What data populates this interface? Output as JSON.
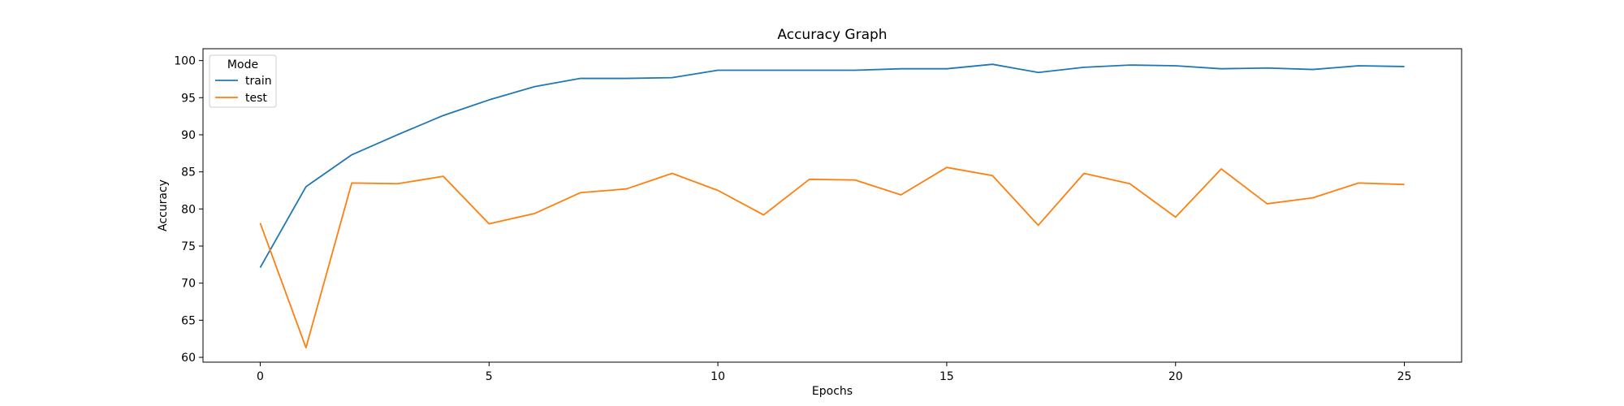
{
  "chart_data": {
    "type": "line",
    "title": "Accuracy Graph",
    "xlabel": "Epochs",
    "ylabel": "Accuracy",
    "x": [
      0,
      1,
      2,
      3,
      4,
      5,
      6,
      7,
      8,
      9,
      10,
      11,
      12,
      13,
      14,
      15,
      16,
      17,
      18,
      19,
      20,
      21,
      22,
      23,
      24,
      25
    ],
    "xlim": [
      -1.25,
      26.25
    ],
    "ylim": [
      59.35,
      101.6
    ],
    "xticks": [
      0,
      5,
      10,
      15,
      20,
      25
    ],
    "yticks": [
      60,
      65,
      70,
      75,
      80,
      85,
      90,
      95,
      100
    ],
    "grid": false,
    "legend": {
      "title": "Mode",
      "placement": "top-left"
    },
    "series": [
      {
        "name": "train",
        "color": "#1f77b4",
        "values": [
          72.1,
          83.0,
          87.3,
          90.0,
          92.6,
          94.7,
          96.5,
          97.6,
          97.6,
          97.7,
          98.7,
          98.7,
          98.7,
          98.7,
          98.9,
          98.9,
          99.5,
          98.4,
          99.1,
          99.4,
          99.3,
          98.9,
          99.0,
          98.8,
          99.3,
          99.2
        ]
      },
      {
        "name": "test",
        "color": "#ff7f0e",
        "values": [
          78.1,
          61.3,
          83.5,
          83.4,
          84.4,
          78.0,
          79.4,
          82.2,
          82.7,
          84.8,
          82.5,
          79.2,
          84.0,
          83.9,
          81.9,
          85.6,
          84.5,
          77.8,
          84.8,
          83.4,
          78.9,
          85.4,
          80.7,
          81.5,
          83.5,
          83.3
        ]
      }
    ]
  }
}
